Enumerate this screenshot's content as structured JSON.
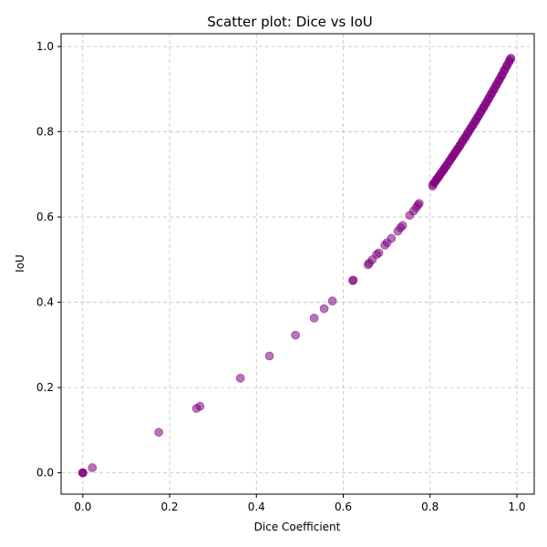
{
  "chart_data": {
    "type": "scatter",
    "title": "Scatter plot: Dice vs IoU",
    "xlabel": "Dice Coefficient",
    "ylabel": "IoU",
    "xlim": [
      -0.05,
      1.04
    ],
    "ylim": [
      -0.05,
      1.03
    ],
    "xticks": [
      "0.0",
      "0.2",
      "0.4",
      "0.6",
      "0.8",
      "1.0"
    ],
    "yticks": [
      "0.0",
      "0.2",
      "0.4",
      "0.6",
      "0.8",
      "1.0"
    ],
    "grid": true,
    "point_color": "#800080",
    "point_alpha": 0.55,
    "series": [
      {
        "x": [
          0.0,
          0.0,
          0.0,
          0.022,
          0.175,
          0.262,
          0.27,
          0.363,
          0.43,
          0.49,
          0.533,
          0.556,
          0.575,
          0.622,
          0.623,
          0.657,
          0.66,
          0.667,
          0.677,
          0.682,
          0.696,
          0.701,
          0.711,
          0.726,
          0.732,
          0.737,
          0.753,
          0.762,
          0.768,
          0.772,
          0.775,
          0.806,
          0.81,
          0.815,
          0.82,
          0.826,
          0.832,
          0.838,
          0.845,
          0.851,
          0.857,
          0.863,
          0.869,
          0.875,
          0.881,
          0.887,
          0.893,
          0.899,
          0.905,
          0.911,
          0.917,
          0.923,
          0.929,
          0.935,
          0.941,
          0.947,
          0.953,
          0.959,
          0.965,
          0.971,
          0.977,
          0.983,
          0.986
        ],
        "y": [
          0.0,
          0.0,
          0.0,
          0.012,
          0.095,
          0.151,
          0.156,
          0.222,
          0.274,
          0.323,
          0.363,
          0.385,
          0.403,
          0.451,
          0.452,
          0.488,
          0.492,
          0.5,
          0.512,
          0.516,
          0.534,
          0.54,
          0.55,
          0.567,
          0.575,
          0.58,
          0.604,
          0.614,
          0.622,
          0.628,
          0.632,
          0.673,
          0.681,
          0.688,
          0.695,
          0.704,
          0.712,
          0.721,
          0.732,
          0.741,
          0.75,
          0.759,
          0.768,
          0.778,
          0.787,
          0.797,
          0.807,
          0.816,
          0.826,
          0.836,
          0.847,
          0.857,
          0.867,
          0.878,
          0.889,
          0.899,
          0.91,
          0.921,
          0.932,
          0.944,
          0.955,
          0.966,
          0.972
        ]
      }
    ]
  }
}
